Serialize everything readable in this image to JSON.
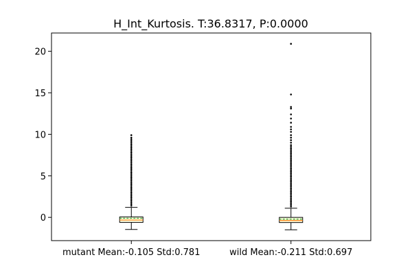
{
  "chart_data": {
    "type": "box",
    "title": "H_Int_Kurtosis. T:36.8317, P:0.0000",
    "xlabel": "",
    "ylabel": "",
    "ylim": [
      -2.8,
      22.2
    ],
    "yticks": [
      0,
      5,
      10,
      15,
      20
    ],
    "ytick_labels": [
      "0",
      "5",
      "10",
      "15",
      "20"
    ],
    "grid": false,
    "legend": "none",
    "colors": {
      "box_edge": "#000000",
      "box_fill": "#ffffe0",
      "median": "#ff7f0e",
      "mean": "#2ca02c",
      "outlier": "#000000"
    },
    "categories": [
      "mutant Mean:-0.105 Std:0.781",
      "wild Mean:-0.211 Std:0.697"
    ],
    "series": [
      {
        "label": "mutant Mean:-0.105 Std:0.781",
        "whisker_low": -1.45,
        "q1": -0.6,
        "median": -0.32,
        "mean": -0.105,
        "q3": 0.05,
        "whisker_high": 1.2,
        "outliers": [
          1.4,
          1.6,
          1.8,
          2.0,
          2.2,
          2.4,
          2.6,
          2.8,
          3.0,
          3.2,
          3.4,
          3.6,
          3.8,
          4.0,
          4.2,
          4.4,
          4.6,
          4.8,
          5.0,
          5.2,
          5.4,
          5.6,
          5.8,
          6.0,
          6.2,
          6.4,
          6.6,
          6.8,
          7.0,
          7.2,
          7.4,
          7.6,
          7.8,
          8.0,
          8.2,
          8.4,
          8.6,
          8.8,
          9.0,
          9.2,
          9.4,
          9.6,
          9.9
        ]
      },
      {
        "label": "wild Mean:-0.211 Std:0.697",
        "whisker_low": -1.5,
        "q1": -0.62,
        "median": -0.38,
        "mean": -0.211,
        "q3": 0.0,
        "whisker_high": 1.1,
        "outliers": [
          1.3,
          1.5,
          1.7,
          1.9,
          2.1,
          2.3,
          2.5,
          2.7,
          2.9,
          3.1,
          3.3,
          3.5,
          3.7,
          3.9,
          4.1,
          4.3,
          4.5,
          4.7,
          4.9,
          5.1,
          5.3,
          5.5,
          5.7,
          5.9,
          6.1,
          6.3,
          6.5,
          6.7,
          6.9,
          7.1,
          7.3,
          7.5,
          7.7,
          7.9,
          8.1,
          8.3,
          8.5,
          8.7,
          9.0,
          9.3,
          9.6,
          9.9,
          10.3,
          10.6,
          10.9,
          11.4,
          11.9,
          12.4,
          13.1,
          13.3,
          14.8,
          20.9
        ]
      }
    ]
  }
}
